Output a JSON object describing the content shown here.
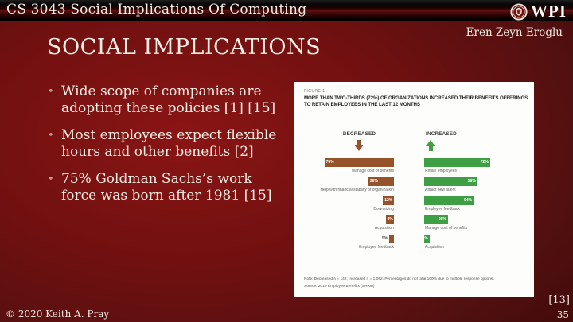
{
  "header": {
    "course_title": "CS 3043 Social Implications Of Computing",
    "logo_text": "WPI",
    "author": "Eren Zeyn Eroglu"
  },
  "slide": {
    "title": "SOCIAL IMPLICATIONS",
    "bullets": [
      "Wide scope of companies are adopting these policies [1] [15]",
      "Most employees expect flexible hours and other benefits [2]",
      "75% Goldman Sachs’s work force was born after 1981 [15]"
    ]
  },
  "chart_data": {
    "type": "bar",
    "figure_label": "FIGURE 1",
    "title": "MORE THAN TWO-THIRDS (72%) OF ORGANIZATIONS INCREASED THEIR BENEFITS OFFERINGS TO RETAIN EMPLOYEES IN THE LAST 12 MONTHS",
    "orientation": "horizontal",
    "value_unit": "%",
    "series": [
      {
        "name": "DECREASED",
        "direction": "down",
        "color": "#96522a",
        "items": [
          {
            "label": "Manage cost of benefits",
            "value": 76,
            "label_inside": true
          },
          {
            "label": "Help with financial stability of organization",
            "value": 28,
            "label_inside": true
          },
          {
            "label": "Downsizing",
            "value": 12,
            "label_inside": true
          },
          {
            "label": "Acquisition",
            "value": 9,
            "label_inside": true
          },
          {
            "label": "Employee feedback",
            "value": 5,
            "label_inside": false
          }
        ]
      },
      {
        "name": "INCREASED",
        "direction": "up",
        "color": "#3f9f44",
        "items": [
          {
            "label": "Retain employees",
            "value": 72,
            "label_inside": true
          },
          {
            "label": "Attract new talent",
            "value": 58,
            "label_inside": true
          },
          {
            "label": "Employee feedback",
            "value": 54,
            "label_inside": true
          },
          {
            "label": "Manage cost of benefits",
            "value": 26,
            "label_inside": true
          },
          {
            "label": "Acquisition",
            "value": 6,
            "label_inside": true
          }
        ]
      }
    ],
    "note": "Note: Decreased n = 142; Increased n = 1,052. Percentages do not total 100% due to multiple response options.",
    "source": "Source: 2019 Employee Benefits (SHRM)"
  },
  "footer": {
    "copyright": "© 2020 Keith A. Pray",
    "citation": "[13]",
    "page_number": "35"
  },
  "colors": {
    "decreased_bar": "#96522a",
    "increased_bar": "#3f9f44",
    "slide_background": "#701010",
    "slide_text": "#f3ece2"
  }
}
